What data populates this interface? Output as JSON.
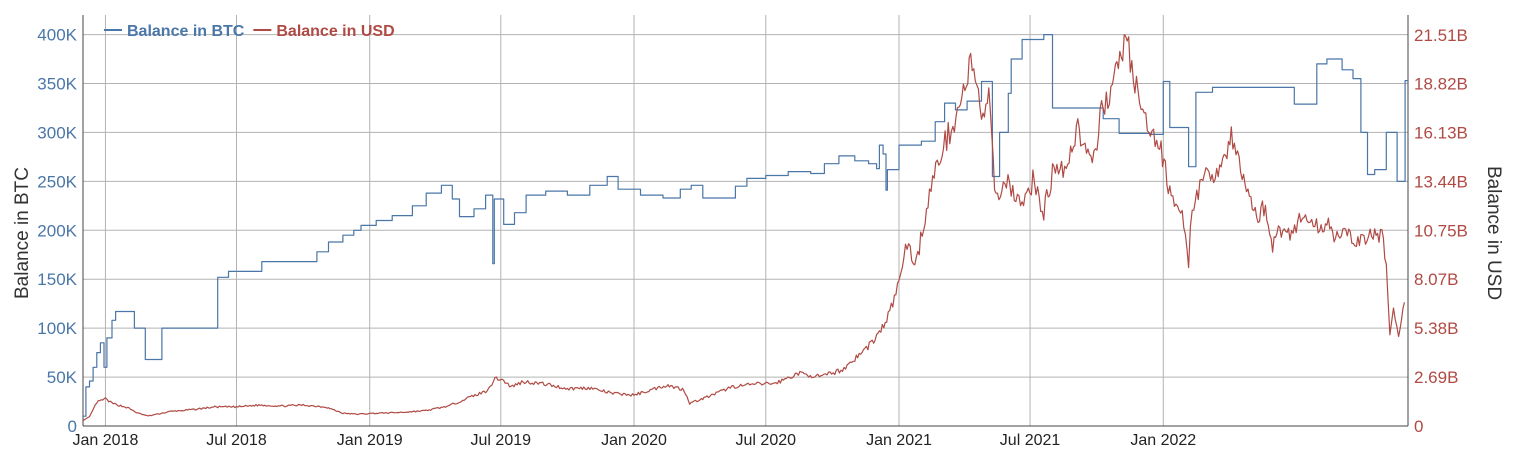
{
  "chart_data": {
    "type": "line",
    "title": "",
    "xlabel": "",
    "ylabel": "Balance in BTC",
    "y2label": "Balance in USD",
    "grid": true,
    "legend_position": "top-left",
    "xlim": [
      "2017-12-01",
      "2022-12-05"
    ],
    "ylim": [
      0,
      420000
    ],
    "y2lim": [
      0,
      22600000000
    ],
    "x_ticks": [
      {
        "date": "2018-01-01",
        "label": "Jan 2018"
      },
      {
        "date": "2018-07-01",
        "label": "Jul 2018"
      },
      {
        "date": "2019-01-01",
        "label": "Jan 2019"
      },
      {
        "date": "2019-07-01",
        "label": "Jul 2019"
      },
      {
        "date": "2020-01-01",
        "label": "Jan 2020"
      },
      {
        "date": "2020-07-01",
        "label": "Jul 2020"
      },
      {
        "date": "2021-01-01",
        "label": "Jan 2021"
      },
      {
        "date": "2021-07-01",
        "label": "Jul 2021"
      },
      {
        "date": "2022-01-01",
        "label": "Jan 2022"
      }
    ],
    "y_ticks": [
      {
        "value": 0,
        "label": "0"
      },
      {
        "value": 50000,
        "label": "50K"
      },
      {
        "value": 100000,
        "label": "100K"
      },
      {
        "value": 150000,
        "label": "150K"
      },
      {
        "value": 200000,
        "label": "200K"
      },
      {
        "value": 250000,
        "label": "250K"
      },
      {
        "value": 300000,
        "label": "300K"
      },
      {
        "value": 350000,
        "label": "350K"
      },
      {
        "value": 400000,
        "label": "400K"
      }
    ],
    "y2_ticks": [
      {
        "value": 0,
        "label": "0"
      },
      {
        "value": 2690000000,
        "label": "2.69B"
      },
      {
        "value": 5380000000,
        "label": "5.38B"
      },
      {
        "value": 8070000000,
        "label": "8.07B"
      },
      {
        "value": 10750000000,
        "label": "10.75B"
      },
      {
        "value": 13440000000,
        "label": "13.44B"
      },
      {
        "value": 16130000000,
        "label": "16.13B"
      },
      {
        "value": 18820000000,
        "label": "18.82B"
      },
      {
        "value": 21510000000,
        "label": "21.51B"
      }
    ],
    "series": [
      {
        "name": "Balance in BTC",
        "axis": "left",
        "color": "#4a76a8",
        "step": true,
        "points": [
          [
            "2017-12-01",
            10000
          ],
          [
            "2017-12-05",
            40000
          ],
          [
            "2017-12-10",
            46000
          ],
          [
            "2017-12-15",
            60000
          ],
          [
            "2017-12-20",
            75000
          ],
          [
            "2017-12-25",
            85000
          ],
          [
            "2017-12-30",
            60000
          ],
          [
            "2018-01-03",
            90000
          ],
          [
            "2018-01-10",
            108000
          ],
          [
            "2018-01-15",
            117000
          ],
          [
            "2018-02-10",
            100000
          ],
          [
            "2018-02-25",
            68000
          ],
          [
            "2018-03-20",
            100000
          ],
          [
            "2018-06-05",
            152000
          ],
          [
            "2018-06-20",
            158000
          ],
          [
            "2018-08-05",
            168000
          ],
          [
            "2018-10-20",
            178000
          ],
          [
            "2018-11-05",
            188000
          ],
          [
            "2018-11-25",
            195000
          ],
          [
            "2018-12-10",
            200000
          ],
          [
            "2018-12-20",
            205000
          ],
          [
            "2019-01-10",
            210000
          ],
          [
            "2019-02-01",
            215000
          ],
          [
            "2019-03-01",
            225000
          ],
          [
            "2019-03-20",
            238000
          ],
          [
            "2019-04-10",
            246000
          ],
          [
            "2019-04-25",
            232000
          ],
          [
            "2019-05-05",
            214000
          ],
          [
            "2019-05-25",
            222000
          ],
          [
            "2019-06-10",
            236000
          ],
          [
            "2019-06-20",
            166000
          ],
          [
            "2019-06-22",
            232000
          ],
          [
            "2019-07-05",
            206000
          ],
          [
            "2019-07-20",
            218000
          ],
          [
            "2019-08-05",
            236000
          ],
          [
            "2019-09-01",
            240000
          ],
          [
            "2019-10-01",
            236000
          ],
          [
            "2019-11-01",
            246000
          ],
          [
            "2019-11-25",
            255000
          ],
          [
            "2019-12-10",
            242000
          ],
          [
            "2020-01-10",
            236000
          ],
          [
            "2020-02-10",
            233000
          ],
          [
            "2020-03-05",
            242000
          ],
          [
            "2020-03-20",
            246000
          ],
          [
            "2020-04-05",
            233000
          ],
          [
            "2020-05-20",
            245000
          ],
          [
            "2020-06-05",
            253000
          ],
          [
            "2020-07-01",
            256000
          ],
          [
            "2020-08-01",
            260000
          ],
          [
            "2020-09-01",
            258000
          ],
          [
            "2020-09-20",
            268000
          ],
          [
            "2020-10-10",
            276000
          ],
          [
            "2020-11-01",
            271000
          ],
          [
            "2020-11-20",
            268000
          ],
          [
            "2020-12-01",
            263000
          ],
          [
            "2020-12-05",
            287000
          ],
          [
            "2020-12-10",
            278000
          ],
          [
            "2020-12-14",
            241000
          ],
          [
            "2020-12-16",
            262000
          ],
          [
            "2021-01-01",
            287000
          ],
          [
            "2021-02-01",
            291000
          ],
          [
            "2021-02-20",
            311000
          ],
          [
            "2021-03-05",
            330000
          ],
          [
            "2021-03-20",
            323000
          ],
          [
            "2021-04-05",
            332000
          ],
          [
            "2021-04-25",
            352000
          ],
          [
            "2021-05-10",
            255000
          ],
          [
            "2021-05-20",
            300000
          ],
          [
            "2021-06-01",
            340000
          ],
          [
            "2021-06-05",
            375000
          ],
          [
            "2021-06-20",
            395000
          ],
          [
            "2021-07-20",
            400000
          ],
          [
            "2021-08-01",
            325000
          ],
          [
            "2021-10-01",
            325000
          ],
          [
            "2021-10-10",
            314000
          ],
          [
            "2021-11-01",
            299000
          ],
          [
            "2021-12-15",
            298000
          ],
          [
            "2022-01-01",
            352000
          ],
          [
            "2022-01-10",
            305000
          ],
          [
            "2022-02-05",
            265000
          ],
          [
            "2022-02-15",
            341000
          ],
          [
            "2022-03-10",
            346000
          ],
          [
            "2022-04-01",
            346000
          ],
          [
            "2022-07-01",
            329000
          ],
          [
            "2022-08-01",
            370000
          ],
          [
            "2022-08-15",
            375000
          ],
          [
            "2022-09-05",
            364000
          ],
          [
            "2022-09-20",
            355000
          ],
          [
            "2022-10-01",
            300000
          ],
          [
            "2022-10-10",
            257000
          ],
          [
            "2022-10-20",
            262000
          ],
          [
            "2022-11-05",
            300000
          ],
          [
            "2022-11-20",
            250000
          ],
          [
            "2022-12-01",
            353000
          ]
        ]
      },
      {
        "name": "Balance in USD",
        "axis": "right",
        "color": "#b04a44",
        "step": false,
        "jitter": true,
        "points": [
          [
            "2017-12-01",
            300000000
          ],
          [
            "2017-12-10",
            500000000
          ],
          [
            "2017-12-20",
            1300000000
          ],
          [
            "2018-01-01",
            1500000000
          ],
          [
            "2018-01-10",
            1250000000
          ],
          [
            "2018-02-01",
            1000000000
          ],
          [
            "2018-02-15",
            700000000
          ],
          [
            "2018-03-01",
            550000000
          ],
          [
            "2018-04-01",
            800000000
          ],
          [
            "2018-05-01",
            900000000
          ],
          [
            "2018-06-01",
            1050000000
          ],
          [
            "2018-07-01",
            1050000000
          ],
          [
            "2018-08-01",
            1150000000
          ],
          [
            "2018-09-01",
            1100000000
          ],
          [
            "2018-10-01",
            1150000000
          ],
          [
            "2018-11-01",
            1050000000
          ],
          [
            "2018-11-25",
            700000000
          ],
          [
            "2018-12-15",
            650000000
          ],
          [
            "2019-01-10",
            700000000
          ],
          [
            "2019-02-15",
            750000000
          ],
          [
            "2019-03-20",
            850000000
          ],
          [
            "2019-04-20",
            1100000000
          ],
          [
            "2019-05-20",
            1600000000
          ],
          [
            "2019-06-10",
            1900000000
          ],
          [
            "2019-06-25",
            2650000000
          ],
          [
            "2019-07-05",
            2500000000
          ],
          [
            "2019-07-15",
            2150000000
          ],
          [
            "2019-08-01",
            2450000000
          ],
          [
            "2019-09-01",
            2300000000
          ],
          [
            "2019-10-01",
            2050000000
          ],
          [
            "2019-11-01",
            2100000000
          ],
          [
            "2019-12-01",
            1800000000
          ],
          [
            "2020-01-01",
            1700000000
          ],
          [
            "2020-02-15",
            2250000000
          ],
          [
            "2020-03-10",
            2000000000
          ],
          [
            "2020-03-18",
            1250000000
          ],
          [
            "2020-04-15",
            1650000000
          ],
          [
            "2020-05-15",
            2150000000
          ],
          [
            "2020-06-15",
            2300000000
          ],
          [
            "2020-07-15",
            2350000000
          ],
          [
            "2020-08-15",
            2900000000
          ],
          [
            "2020-09-15",
            2700000000
          ],
          [
            "2020-10-15",
            3100000000
          ],
          [
            "2020-11-01",
            3700000000
          ],
          [
            "2020-11-15",
            4200000000
          ],
          [
            "2020-12-01",
            4900000000
          ],
          [
            "2020-12-15",
            5800000000
          ],
          [
            "2021-01-01",
            7800000000
          ],
          [
            "2021-01-10",
            10000000000
          ],
          [
            "2021-01-25",
            9000000000
          ],
          [
            "2021-02-10",
            12400000000
          ],
          [
            "2021-02-25",
            14700000000
          ],
          [
            "2021-03-10",
            16000000000
          ],
          [
            "2021-03-25",
            17500000000
          ],
          [
            "2021-04-10",
            19900000000
          ],
          [
            "2021-04-25",
            17200000000
          ],
          [
            "2021-05-05",
            17800000000
          ],
          [
            "2021-05-15",
            12400000000
          ],
          [
            "2021-05-25",
            13500000000
          ],
          [
            "2021-06-05",
            13200000000
          ],
          [
            "2021-06-20",
            12000000000
          ],
          [
            "2021-07-05",
            13500000000
          ],
          [
            "2021-07-20",
            11800000000
          ],
          [
            "2021-08-05",
            14500000000
          ],
          [
            "2021-08-20",
            14200000000
          ],
          [
            "2021-09-05",
            16500000000
          ],
          [
            "2021-09-25",
            14000000000
          ],
          [
            "2021-10-10",
            17800000000
          ],
          [
            "2021-10-25",
            18800000000
          ],
          [
            "2021-11-10",
            21500000000
          ],
          [
            "2021-11-25",
            18500000000
          ],
          [
            "2021-12-10",
            16200000000
          ],
          [
            "2021-12-25",
            15700000000
          ],
          [
            "2022-01-10",
            13000000000
          ],
          [
            "2022-01-25",
            12000000000
          ],
          [
            "2022-02-05",
            9000000000
          ],
          [
            "2022-02-10",
            12200000000
          ],
          [
            "2022-03-01",
            13600000000
          ],
          [
            "2022-03-20",
            14200000000
          ],
          [
            "2022-04-05",
            15800000000
          ],
          [
            "2022-04-20",
            13800000000
          ],
          [
            "2022-05-10",
            11500000000
          ],
          [
            "2022-05-20",
            12000000000
          ],
          [
            "2022-06-01",
            10000000000
          ],
          [
            "2022-06-15",
            11000000000
          ],
          [
            "2022-06-25",
            10500000000
          ],
          [
            "2022-07-10",
            11500000000
          ],
          [
            "2022-07-25",
            11200000000
          ],
          [
            "2022-08-05",
            10800000000
          ],
          [
            "2022-08-15",
            11300000000
          ],
          [
            "2022-08-25",
            10600000000
          ],
          [
            "2022-09-10",
            10400000000
          ],
          [
            "2022-10-01",
            10200000000
          ],
          [
            "2022-10-20",
            10500000000
          ],
          [
            "2022-11-01",
            10400000000
          ],
          [
            "2022-11-05",
            8800000000
          ],
          [
            "2022-11-10",
            5200000000
          ],
          [
            "2022-11-15",
            6300000000
          ],
          [
            "2022-11-22",
            4900000000
          ],
          [
            "2022-11-30",
            6800000000
          ]
        ]
      }
    ]
  }
}
